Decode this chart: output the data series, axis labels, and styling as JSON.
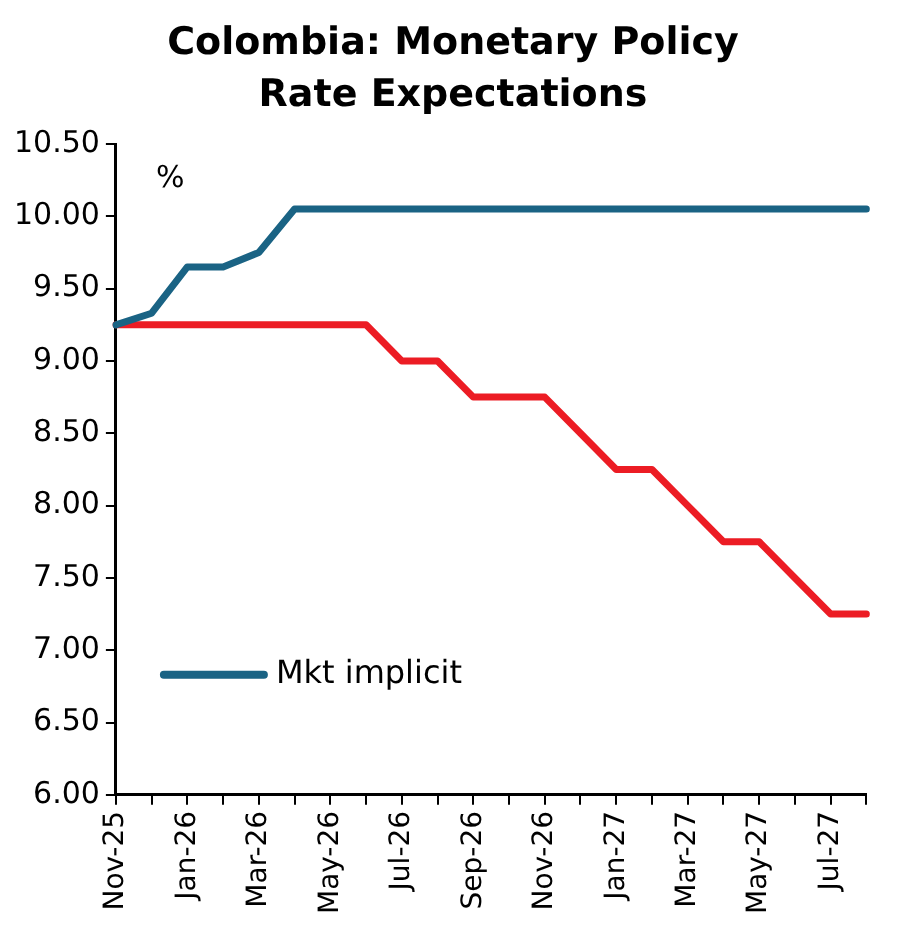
{
  "chart_data": {
    "type": "line",
    "title": "Colombia: Monetary Policy Rate Expectations",
    "ylabel": "%",
    "categories": [
      "Nov-25",
      null,
      "Jan-26",
      null,
      "Mar-26",
      null,
      "May-26",
      null,
      "Jul-26",
      null,
      "Sep-26",
      null,
      "Nov-26",
      null,
      "Jan-27",
      null,
      "Mar-27",
      null,
      "May-27",
      null,
      "Jul-27",
      null
    ],
    "series": [
      {
        "name": "Mkt implicit",
        "color": "#1a6384",
        "values": [
          9.25,
          9.33,
          9.65,
          9.65,
          9.75,
          10.05,
          10.05,
          10.05,
          10.05,
          10.05,
          10.05,
          10.05,
          10.05,
          10.05,
          10.05,
          10.05,
          10.05,
          10.05,
          10.05,
          10.05,
          10.05,
          10.05
        ]
      },
      {
        "color": "#ec1c24",
        "values": [
          9.25,
          9.25,
          9.25,
          9.25,
          9.25,
          9.25,
          9.25,
          9.25,
          9.0,
          9.0,
          8.75,
          8.75,
          8.75,
          8.5,
          8.25,
          8.25,
          8.0,
          7.75,
          7.75,
          7.5,
          7.25,
          7.25
        ]
      }
    ],
    "ylim": [
      6.0,
      10.5
    ],
    "yticks": [
      {
        "value": 6,
        "label": "6.00"
      },
      {
        "value": 6.5,
        "label": "6.50"
      },
      {
        "value": 7,
        "label": "7.00"
      },
      {
        "value": 7.5,
        "label": "7.50"
      },
      {
        "value": 8,
        "label": "8.00"
      },
      {
        "value": 8.5,
        "label": "8.50"
      },
      {
        "value": 9,
        "label": "9.00"
      },
      {
        "value": 9.5,
        "label": "9.50"
      },
      {
        "value": 10,
        "label": "10.00"
      },
      {
        "value": 10.5,
        "label": "10.50"
      }
    ],
    "grid": false,
    "legend": "bottom left",
    "marker": "none",
    "line_style": "solid"
  }
}
